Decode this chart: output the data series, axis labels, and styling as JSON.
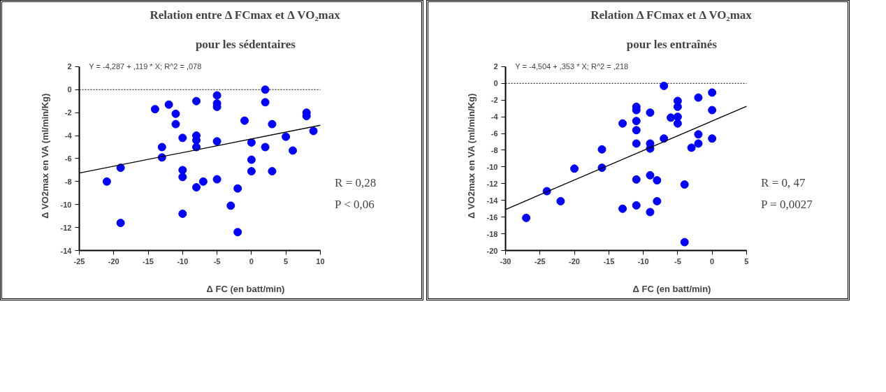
{
  "chart_data": [
    {
      "type": "scatter",
      "title": "Relation entre Δ FCmax et Δ VO₂max",
      "subtitle": "pour les sédentaires",
      "xlabel": "Δ FC (en batt/min)",
      "ylabel": "Δ VO2max en VA (ml/min/Kg)",
      "xlim": [
        -25,
        10
      ],
      "ylim": [
        -14,
        2
      ],
      "xticks": [
        -25,
        -20,
        -15,
        -10,
        -5,
        0,
        5,
        10
      ],
      "yticks": [
        -14,
        -12,
        -10,
        -8,
        -6,
        -4,
        -2,
        0,
        2
      ],
      "series": [
        {
          "color": "#0000ff",
          "marker": "circle",
          "x": [
            -21,
            -19,
            -19,
            -14,
            -13,
            -13,
            -12,
            -11,
            -11,
            -10,
            -10,
            -10,
            -10,
            -8,
            -8,
            -8,
            -8,
            -8,
            -7,
            -5,
            -5,
            -5,
            -5,
            -5,
            -3,
            -2,
            -2,
            -1,
            0,
            0,
            0,
            2,
            2,
            2,
            3,
            3,
            5,
            6,
            8,
            8,
            9
          ],
          "values": [
            -8.0,
            -6.8,
            -11.6,
            -1.7,
            -5.0,
            -5.9,
            -1.3,
            -2.1,
            -3.0,
            -4.2,
            -7.0,
            -7.6,
            -10.8,
            -1.0,
            -4.0,
            -4.4,
            -5.0,
            -8.5,
            -8.0,
            -0.5,
            -1.2,
            -1.5,
            -4.5,
            -7.8,
            -10.1,
            -8.6,
            -12.4,
            -2.7,
            -4.6,
            -6.1,
            -7.1,
            0.0,
            -1.1,
            -5.0,
            -3.0,
            -7.1,
            -4.1,
            -5.3,
            -2.0,
            -2.3,
            -3.6
          ]
        },
        {
          "type": "line",
          "color": "#000000",
          "x": [
            -25,
            10
          ],
          "values": [
            -7.26,
            -3.1
          ]
        }
      ],
      "ref_lines": [
        {
          "axis": "y",
          "value": 0,
          "line_style": "dotted",
          "color": "#000000"
        }
      ],
      "annotations": [
        "Y = -4,287 + ,119 * X; R^2 = ,078",
        "R = 0,28",
        "P < 0,06"
      ]
    },
    {
      "type": "scatter",
      "title": "Relation Δ FCmax et Δ VO₂max",
      "subtitle": "pour les entraînés",
      "xlabel": "Δ FC (en batt/min)",
      "ylabel": "Δ VO2max en VA (ml/min/Kg)",
      "xlim": [
        -30,
        5
      ],
      "ylim": [
        -20,
        2
      ],
      "xticks": [
        -30,
        -25,
        -20,
        -15,
        -10,
        -5,
        0,
        5
      ],
      "yticks": [
        -20,
        -18,
        -16,
        -14,
        -12,
        -10,
        -8,
        -6,
        -4,
        -2,
        0,
        2
      ],
      "series": [
        {
          "color": "#0000ff",
          "marker": "circle",
          "x": [
            -27,
            -24,
            -22,
            -20,
            -16,
            -16,
            -13,
            -13,
            -11,
            -11,
            -11,
            -11,
            -11,
            -11,
            -11,
            -9,
            -9,
            -9,
            -9,
            -9,
            -8,
            -8,
            -7,
            -7,
            -6,
            -5,
            -5,
            -5,
            -5,
            -4,
            -4,
            -3,
            -2,
            -2,
            -2,
            0,
            0,
            0
          ],
          "values": [
            -16.1,
            -12.9,
            -14.1,
            -10.2,
            -7.9,
            -10.1,
            -4.8,
            -15.0,
            -2.8,
            -3.2,
            -4.5,
            -5.6,
            -7.2,
            -11.5,
            -14.6,
            -3.5,
            -7.2,
            -7.8,
            -11.0,
            -15.4,
            -11.6,
            -14.1,
            -0.3,
            -6.6,
            -4.1,
            -2.1,
            -2.8,
            -4.0,
            -4.8,
            -12.1,
            -19.0,
            -7.7,
            -1.7,
            -6.1,
            -7.2,
            -1.1,
            -3.2,
            -6.6
          ]
        },
        {
          "type": "line",
          "color": "#000000",
          "x": [
            -30,
            5
          ],
          "values": [
            -15.09,
            -2.74
          ]
        }
      ],
      "ref_lines": [
        {
          "axis": "y",
          "value": 0,
          "line_style": "dotted",
          "color": "#000000"
        }
      ],
      "annotations": [
        "Y = -4,504 + ,353 * X; R^2 = ,218",
        "R = 0, 47",
        "P = 0,0027"
      ]
    }
  ]
}
